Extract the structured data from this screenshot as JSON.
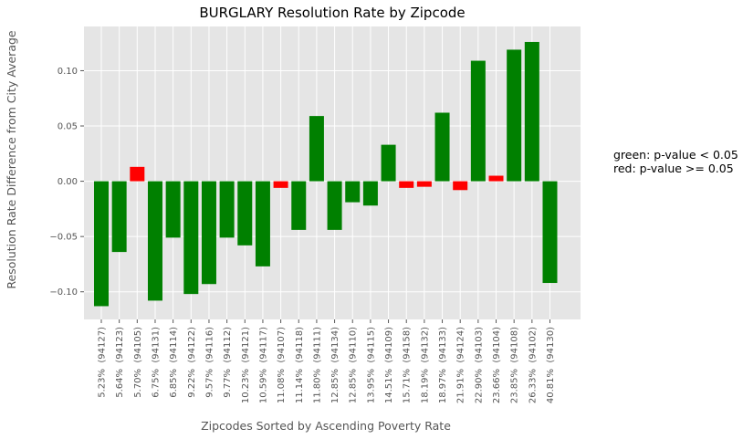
{
  "chart_data": {
    "type": "bar",
    "title": "BURGLARY Resolution Rate by Zipcode",
    "xlabel": "Zipcodes Sorted by Ascending Poverty Rate",
    "ylabel": "Resolution Rate Difference from City Average",
    "ylim": [
      -0.125,
      0.14
    ],
    "yticks": [
      {
        "value": 0.1,
        "label": "0.10"
      },
      {
        "value": 0.05,
        "label": "0.05"
      },
      {
        "value": 0.0,
        "label": "0.00"
      },
      {
        "value": -0.05,
        "label": "−0.05"
      },
      {
        "value": -0.1,
        "label": "−0.10"
      }
    ],
    "grid": true,
    "categories": [
      "5.23%  (94127)",
      "5.64%  (94123)",
      "5.70%  (94105)",
      "6.75%  (94131)",
      "6.85%  (94114)",
      "9.22%  (94122)",
      "9.57%  (94116)",
      "9.77%  (94112)",
      "10.23%  (94121)",
      "10.59%  (94117)",
      "11.08%  (94107)",
      "11.14%  (94118)",
      "11.80%  (94111)",
      "12.85%  (94134)",
      "12.85%  (94110)",
      "13.95%  (94115)",
      "14.51%  (94109)",
      "15.71%  (94158)",
      "18.19%  (94132)",
      "18.97%  (94133)",
      "21.91%  (94124)",
      "22.90%  (94103)",
      "23.66%  (94104)",
      "23.85%  (94108)",
      "26.33%  (94102)",
      "40.81%  (94130)"
    ],
    "values": [
      -0.113,
      -0.064,
      0.013,
      -0.108,
      -0.051,
      -0.102,
      -0.093,
      -0.051,
      -0.058,
      -0.077,
      -0.006,
      -0.044,
      0.059,
      -0.044,
      -0.019,
      -0.022,
      0.033,
      -0.006,
      -0.005,
      0.062,
      -0.008,
      0.109,
      0.005,
      0.119,
      0.126,
      -0.092
    ],
    "colors": [
      "green",
      "green",
      "red",
      "green",
      "green",
      "green",
      "green",
      "green",
      "green",
      "green",
      "red",
      "green",
      "green",
      "green",
      "green",
      "green",
      "green",
      "red",
      "red",
      "green",
      "red",
      "green",
      "red",
      "green",
      "green",
      "green"
    ],
    "color_map": {
      "green": "#008000",
      "red": "#ff0000"
    },
    "annotation": [
      "green: p-value < 0.05",
      "red: p-value >= 0.05"
    ]
  }
}
